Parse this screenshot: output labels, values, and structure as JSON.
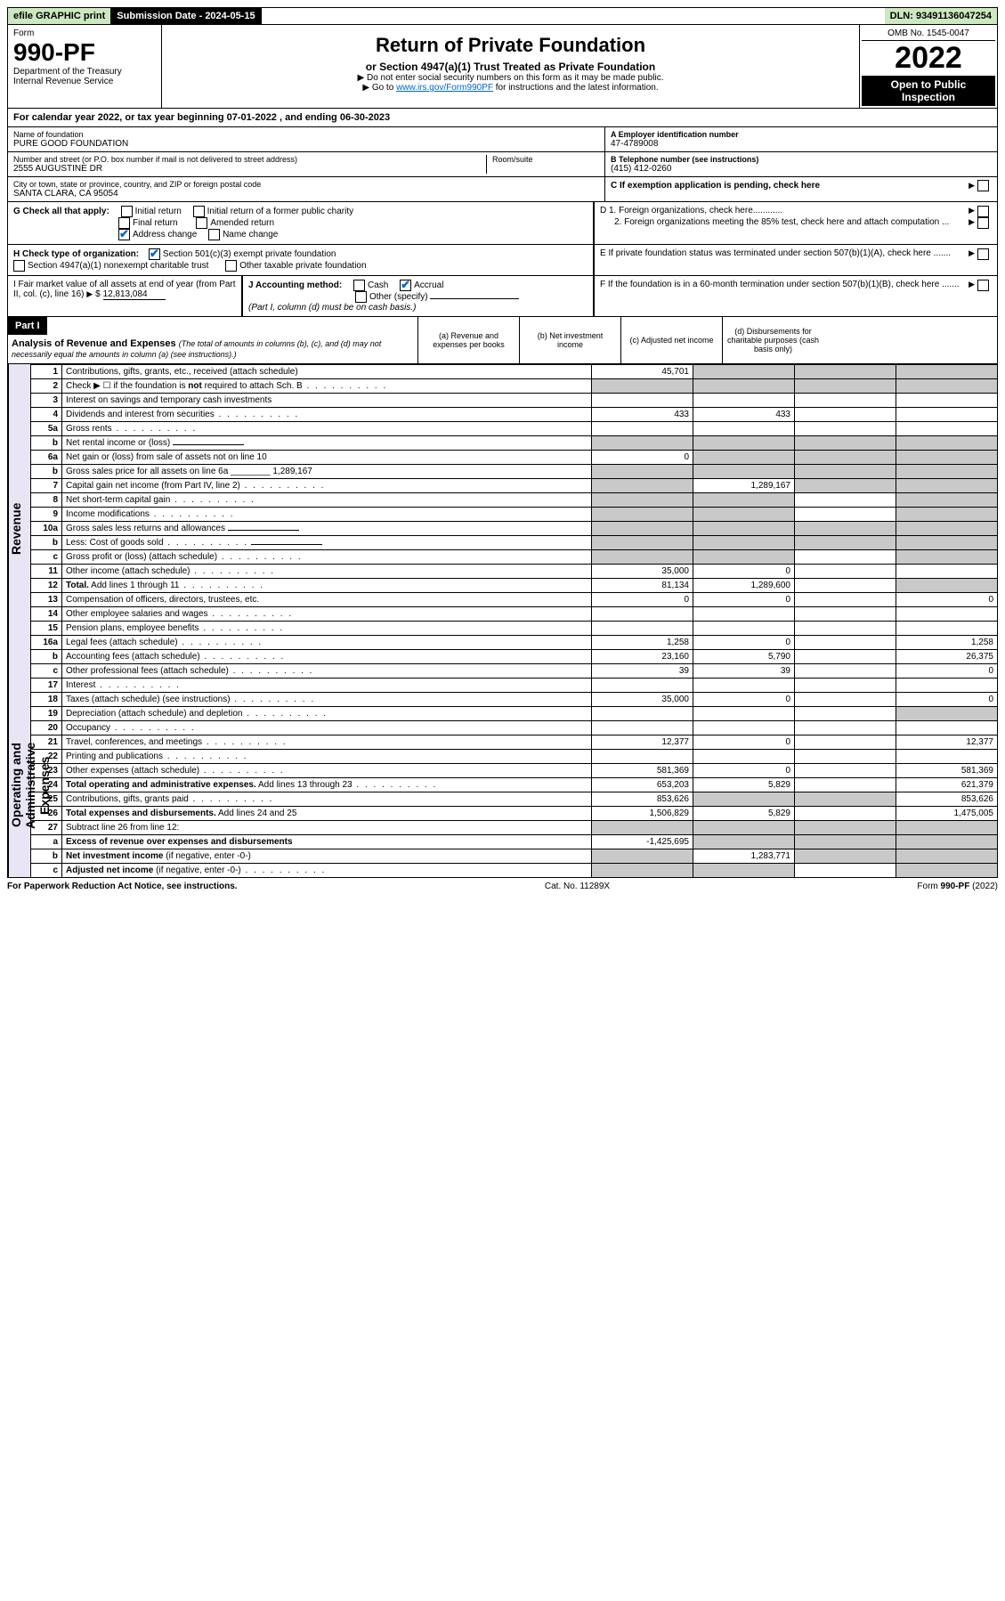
{
  "topbar": {
    "efile": "efile GRAPHIC print",
    "submission": "Submission Date - 2024-05-15",
    "dln": "DLN: 93491136047254"
  },
  "header": {
    "form_label": "Form",
    "form_number": "990-PF",
    "dept": "Department of the Treasury",
    "irs": "Internal Revenue Service",
    "title": "Return of Private Foundation",
    "subtitle": "or Section 4947(a)(1) Trust Treated as Private Foundation",
    "note1": "▶ Do not enter social security numbers on this form as it may be made public.",
    "note2_pre": "▶ Go to ",
    "note2_link": "www.irs.gov/Form990PF",
    "note2_post": " for instructions and the latest information.",
    "omb": "OMB No. 1545-0047",
    "year": "2022",
    "inspect": "Open to Public Inspection"
  },
  "calyear": {
    "text_a": "For calendar year 2022, or tax year beginning ",
    "begin": "07-01-2022",
    "text_b": " , and ending ",
    "end": "06-30-2023"
  },
  "entity": {
    "name_lbl": "Name of foundation",
    "name": "PURE GOOD FOUNDATION",
    "addr_lbl": "Number and street (or P.O. box number if mail is not delivered to street address)",
    "addr": "2555 AUGUSTINE DR",
    "room_lbl": "Room/suite",
    "city_lbl": "City or town, state or province, country, and ZIP or foreign postal code",
    "city": "SANTA CLARA, CA  95054",
    "ein_lbl": "A Employer identification number",
    "ein": "47-4789008",
    "phone_lbl": "B Telephone number (see instructions)",
    "phone": "(415) 412-0260",
    "c_lbl": "C If exemption application is pending, check here"
  },
  "sectionG": {
    "label": "G Check all that apply:",
    "items": [
      "Initial return",
      "Initial return of a former public charity",
      "Final return",
      "Amended return",
      "Address change",
      "Name change"
    ]
  },
  "sectionH": {
    "label": "H Check type of organization:",
    "opt1": "Section 501(c)(3) exempt private foundation",
    "opt2": "Section 4947(a)(1) nonexempt charitable trust",
    "opt3": "Other taxable private foundation"
  },
  "sectionD": {
    "d1": "D 1. Foreign organizations, check here............",
    "d2": "2. Foreign organizations meeting the 85% test, check here and attach computation ...",
    "e": "E  If private foundation status was terminated under section 507(b)(1)(A), check here .......",
    "f": "F  If the foundation is in a 60-month termination under section 507(b)(1)(B), check here ......."
  },
  "sectionI": {
    "label": "I Fair market value of all assets at end of year (from Part II, col. (c), line 16)",
    "val": "12,813,084",
    "j_label": "J Accounting method:",
    "j_cash": "Cash",
    "j_accrual": "Accrual",
    "j_other": "Other (specify)",
    "j_note": "(Part I, column (d) must be on cash basis.)"
  },
  "partI": {
    "label": "Part I",
    "title": "Analysis of Revenue and Expenses",
    "title_note": "(The total of amounts in columns (b), (c), and (d) may not necessarily equal the amounts in column (a) (see instructions).)",
    "col_a": "(a)  Revenue and expenses per books",
    "col_b": "(b)  Net investment income",
    "col_c": "(c)  Adjusted net income",
    "col_d": "(d)  Disbursements for charitable purposes (cash basis only)"
  },
  "vert": {
    "revenue": "Revenue",
    "expenses": "Operating and Administrative Expenses"
  },
  "rows": [
    {
      "n": "1",
      "d": "Contributions, gifts, grants, etc., received (attach schedule)",
      "a": "45,701",
      "bS": true,
      "cS": true,
      "dS": true
    },
    {
      "n": "2",
      "d": "Check ▶ ☐ if the foundation is <b>not</b> required to attach Sch. B",
      "dots": true,
      "aS": true,
      "bS": true,
      "cS": true,
      "dS": true
    },
    {
      "n": "3",
      "d": "Interest on savings and temporary cash investments"
    },
    {
      "n": "4",
      "d": "Dividends and interest from securities",
      "dots": true,
      "a": "433",
      "b": "433"
    },
    {
      "n": "5a",
      "d": "Gross rents",
      "dots": true
    },
    {
      "n": "b",
      "d": "Net rental income or (loss)",
      "line": true,
      "aS": true,
      "bS": true,
      "cS": true,
      "dS": true
    },
    {
      "n": "6a",
      "d": "Net gain or (loss) from sale of assets not on line 10",
      "a": "0",
      "bS": true,
      "cS": true,
      "dS": true
    },
    {
      "n": "b",
      "d": "Gross sales price for all assets on line 6a ________ 1,289,167",
      "aS": true,
      "bS": true,
      "cS": true,
      "dS": true
    },
    {
      "n": "7",
      "d": "Capital gain net income (from Part IV, line 2)",
      "dots": true,
      "aS": true,
      "b": "1,289,167",
      "cS": true,
      "dS": true
    },
    {
      "n": "8",
      "d": "Net short-term capital gain",
      "dots": true,
      "aS": true,
      "bS": true,
      "dS": true
    },
    {
      "n": "9",
      "d": "Income modifications",
      "dots": true,
      "aS": true,
      "bS": true,
      "dS": true
    },
    {
      "n": "10a",
      "d": "Gross sales less returns and allowances",
      "line": true,
      "aS": true,
      "bS": true,
      "cS": true,
      "dS": true
    },
    {
      "n": "b",
      "d": "Less: Cost of goods sold",
      "dots": true,
      "line": true,
      "aS": true,
      "bS": true,
      "cS": true,
      "dS": true
    },
    {
      "n": "c",
      "d": "Gross profit or (loss) (attach schedule)",
      "dots": true,
      "aS": true,
      "bS": true,
      "dS": true
    },
    {
      "n": "11",
      "d": "Other income (attach schedule)",
      "dots": true,
      "a": "35,000",
      "b": "0"
    },
    {
      "n": "12",
      "d": "<b>Total.</b> Add lines 1 through 11",
      "dots": true,
      "a": "81,134",
      "b": "1,289,600",
      "dS": true
    },
    {
      "n": "13",
      "d": "Compensation of officers, directors, trustees, etc.",
      "a": "0",
      "b": "0",
      "d2": "0"
    },
    {
      "n": "14",
      "d": "Other employee salaries and wages",
      "dots": true
    },
    {
      "n": "15",
      "d": "Pension plans, employee benefits",
      "dots": true
    },
    {
      "n": "16a",
      "d": "Legal fees (attach schedule)",
      "dots": true,
      "a": "1,258",
      "b": "0",
      "d2": "1,258"
    },
    {
      "n": "b",
      "d": "Accounting fees (attach schedule)",
      "dots": true,
      "a": "23,160",
      "b": "5,790",
      "d2": "26,375"
    },
    {
      "n": "c",
      "d": "Other professional fees (attach schedule)",
      "dots": true,
      "a": "39",
      "b": "39",
      "d2": "0"
    },
    {
      "n": "17",
      "d": "Interest",
      "dots": true
    },
    {
      "n": "18",
      "d": "Taxes (attach schedule) (see instructions)",
      "dots": true,
      "a": "35,000",
      "b": "0",
      "d2": "0"
    },
    {
      "n": "19",
      "d": "Depreciation (attach schedule) and depletion",
      "dots": true,
      "dS": true
    },
    {
      "n": "20",
      "d": "Occupancy",
      "dots": true
    },
    {
      "n": "21",
      "d": "Travel, conferences, and meetings",
      "dots": true,
      "a": "12,377",
      "b": "0",
      "d2": "12,377"
    },
    {
      "n": "22",
      "d": "Printing and publications",
      "dots": true
    },
    {
      "n": "23",
      "d": "Other expenses (attach schedule)",
      "dots": true,
      "a": "581,369",
      "b": "0",
      "d2": "581,369"
    },
    {
      "n": "24",
      "d": "<b>Total operating and administrative expenses.</b> Add lines 13 through 23",
      "dots": true,
      "a": "653,203",
      "b": "5,829",
      "d2": "621,379"
    },
    {
      "n": "25",
      "d": "Contributions, gifts, grants paid",
      "dots": true,
      "a": "853,626",
      "bS": true,
      "cS": true,
      "d2": "853,626"
    },
    {
      "n": "26",
      "d": "<b>Total expenses and disbursements.</b> Add lines 24 and 25",
      "a": "1,506,829",
      "b": "5,829",
      "d2": "1,475,005"
    },
    {
      "n": "27",
      "d": "Subtract line 26 from line 12:",
      "aS": true,
      "bS": true,
      "cS": true,
      "dS": true
    },
    {
      "n": "a",
      "d": "<b>Excess of revenue over expenses and disbursements</b>",
      "a": "-1,425,695",
      "bS": true,
      "cS": true,
      "dS": true
    },
    {
      "n": "b",
      "d": "<b>Net investment income</b> (if negative, enter -0-)",
      "aS": true,
      "b": "1,283,771",
      "cS": true,
      "dS": true
    },
    {
      "n": "c",
      "d": "<b>Adjusted net income</b> (if negative, enter -0-)",
      "dots": true,
      "aS": true,
      "bS": true,
      "dS": true
    }
  ],
  "footer": {
    "left": "For Paperwork Reduction Act Notice, see instructions.",
    "mid": "Cat. No. 11289X",
    "right": "Form 990-PF (2022)"
  }
}
